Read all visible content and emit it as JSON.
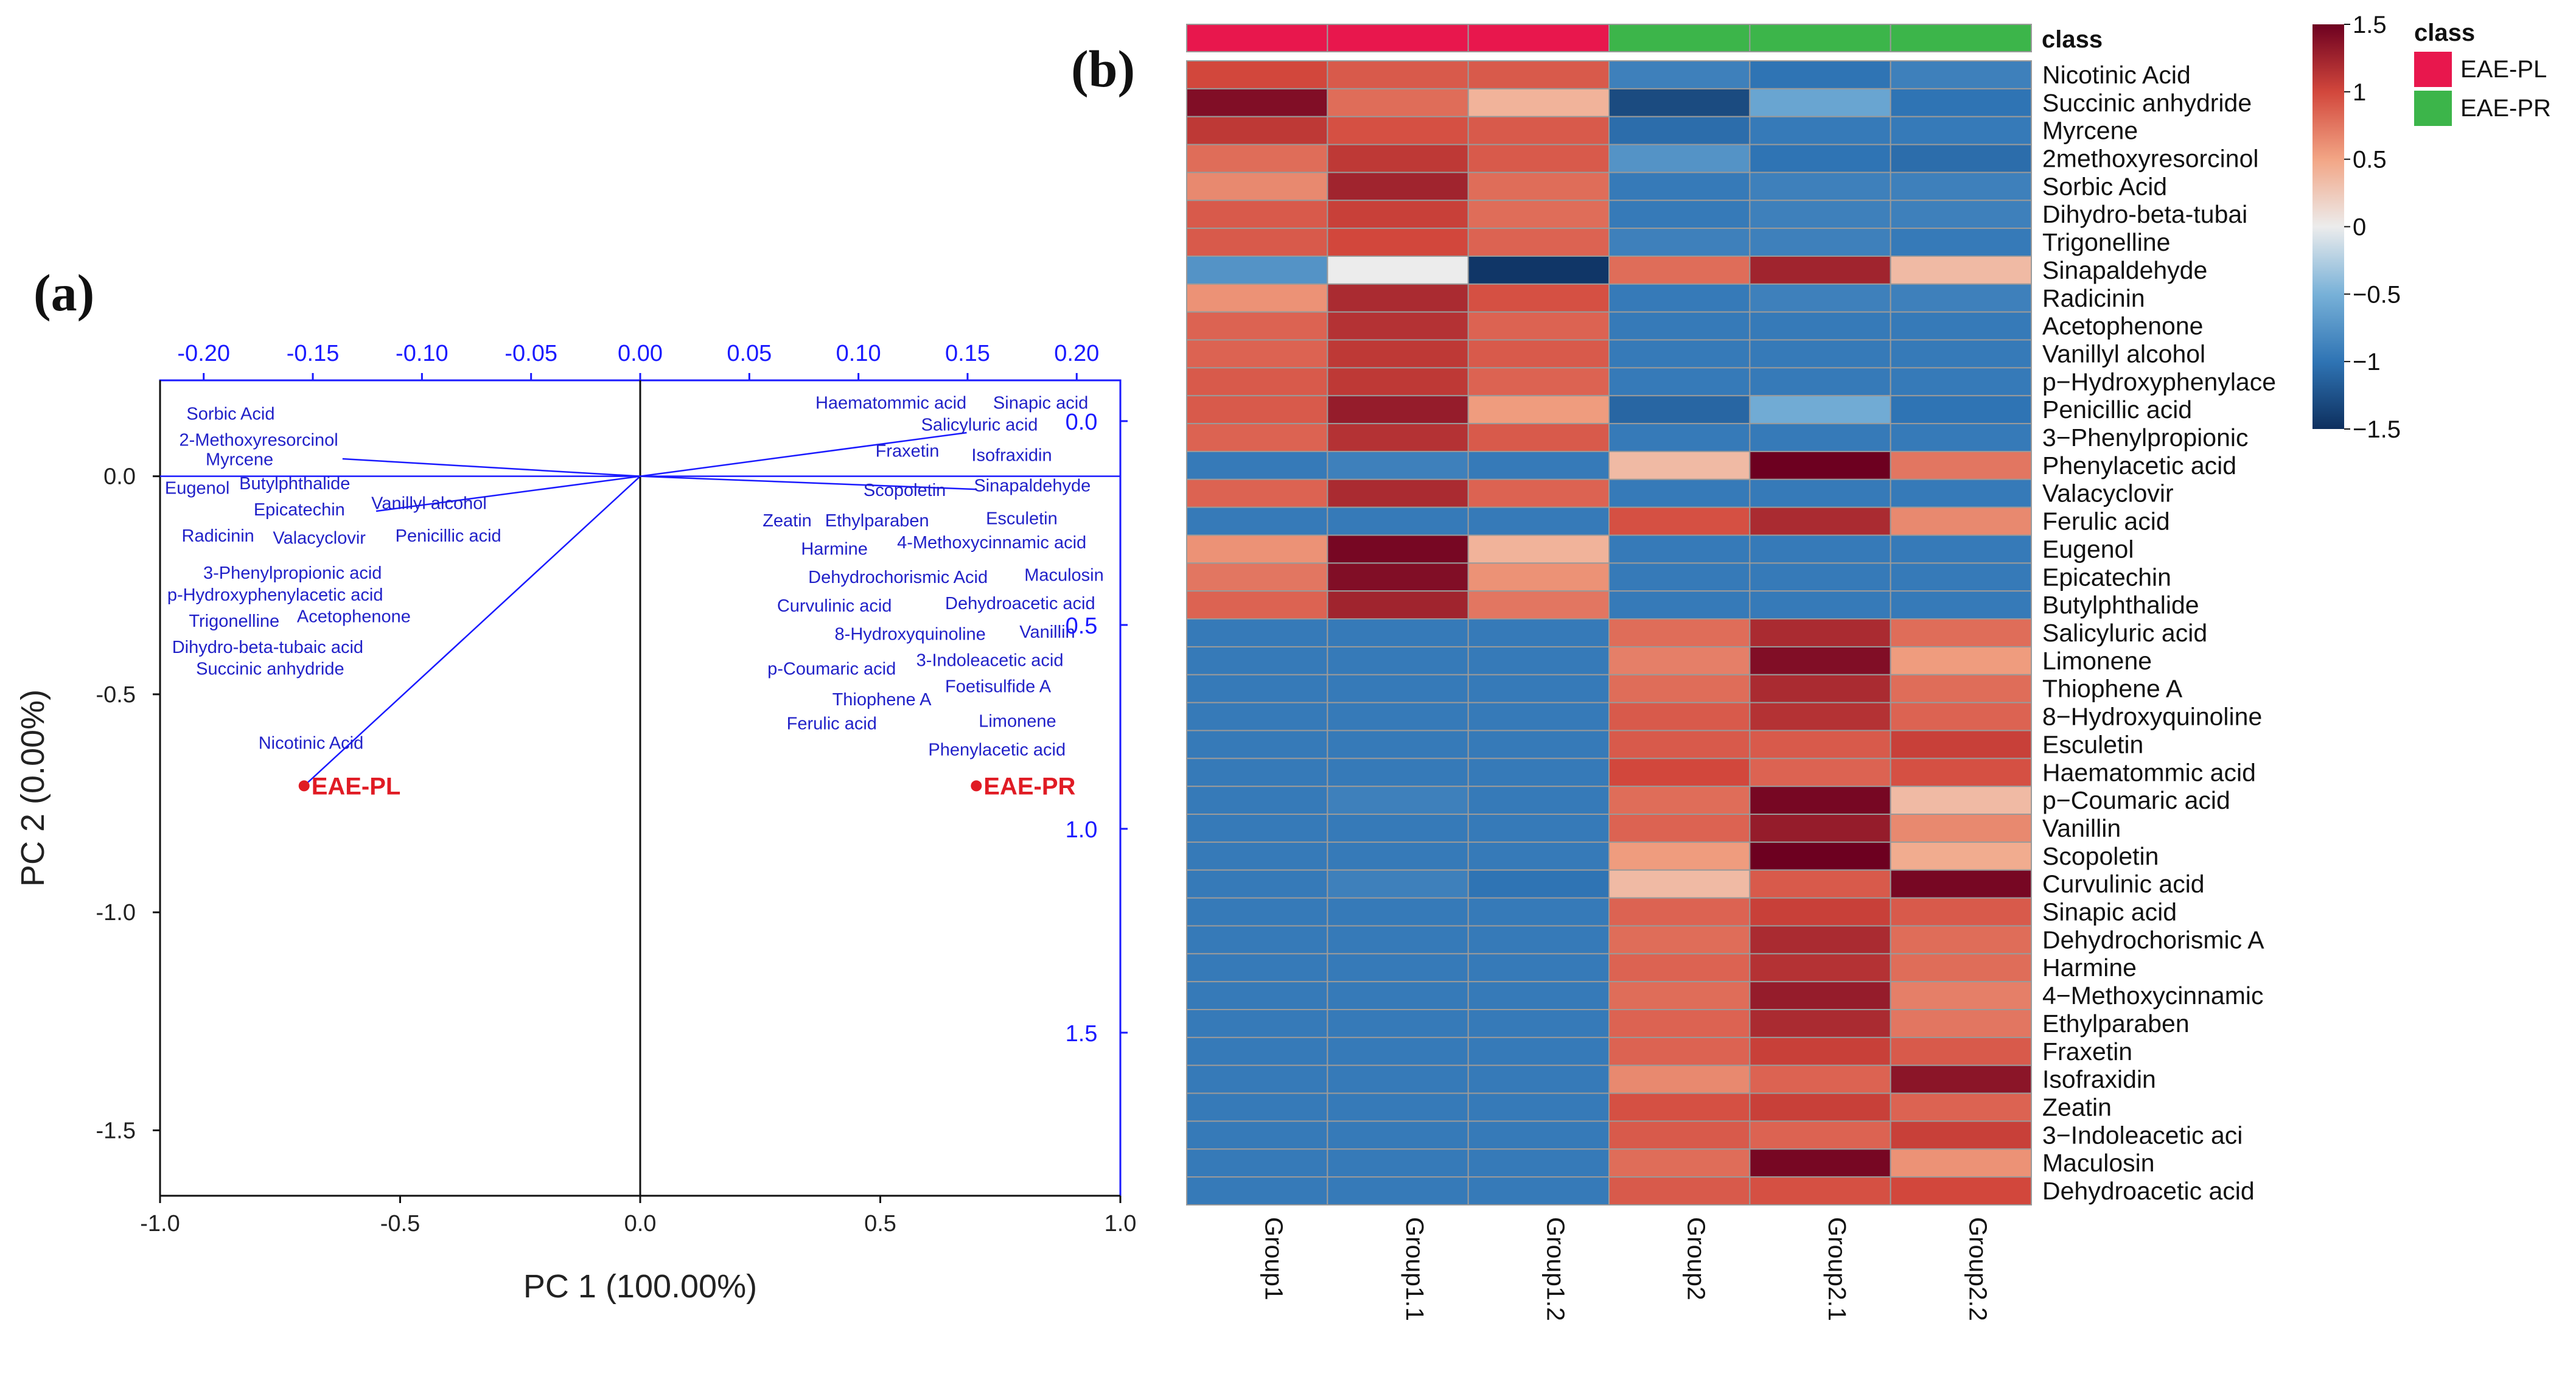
{
  "panel_a_label": "(a)",
  "panel_b_label": "(b)",
  "chart_data": [
    {
      "type": "scatter",
      "subtype": "biplot",
      "xlabel": "PC 1 (100.00%)",
      "ylabel": "PC 2 (0.00%)",
      "xlim": [
        -1.0,
        1.0
      ],
      "ylim": [
        -1.65,
        0.22
      ],
      "x_ticks": [
        -1.0,
        -0.5,
        0.0,
        0.5,
        1.0
      ],
      "x_tick_labels": [
        "-1.0",
        "-0.5",
        "0.0",
        "0.5",
        "1.0"
      ],
      "y_ticks": [
        0.0,
        -0.5,
        -1.0,
        -1.5
      ],
      "y_tick_labels": [
        "0.0",
        "-0.5",
        "-1.0",
        "-1.5"
      ],
      "top_axis": {
        "lim": [
          -0.22,
          0.22
        ],
        "ticks": [
          -0.2,
          -0.15,
          -0.1,
          -0.05,
          0.0,
          0.05,
          0.1,
          0.15,
          0.2
        ],
        "tick_labels": [
          "-0.20",
          "-0.15",
          "-0.10",
          "-0.05",
          "0.00",
          "0.05",
          "0.10",
          "0.15",
          "0.20"
        ]
      },
      "right_axis": {
        "lim": [
          -0.1,
          1.9
        ],
        "ticks": [
          0.0,
          0.5,
          1.0,
          1.5
        ],
        "tick_labels": [
          "0.0",
          "0.5",
          "1.0",
          "1.5"
        ]
      },
      "scores": [
        {
          "label": "EAE-PL",
          "x": -0.7,
          "y": -0.71,
          "color": "#e01b24"
        },
        {
          "label": "EAE-PR",
          "x": 0.7,
          "y": -0.71,
          "color": "#e01b24"
        }
      ],
      "loading_vectors": [
        {
          "x": -0.7,
          "y": -0.71
        },
        {
          "x": -0.62,
          "y": 0.04
        },
        {
          "x": -0.55,
          "y": -0.08
        },
        {
          "x": 0.68,
          "y": 0.1
        },
        {
          "x": 0.7,
          "y": -0.03
        }
      ],
      "variable_labels": [
        {
          "label": "Sorbic Acid",
          "x": -0.945,
          "y": 0.13
        },
        {
          "label": "2-Methoxyresorcinol",
          "x": -0.96,
          "y": 0.07
        },
        {
          "label": "Myrcene",
          "x": -0.905,
          "y": 0.025
        },
        {
          "label": "Eugenol",
          "x": -0.99,
          "y": -0.04
        },
        {
          "label": "Butylphthalide",
          "x": -0.835,
          "y": -0.03
        },
        {
          "label": "Epicatechin",
          "x": -0.805,
          "y": -0.09
        },
        {
          "label": "Vanillyl alcohol",
          "x": -0.56,
          "y": -0.075
        },
        {
          "label": "Radicinin",
          "x": -0.955,
          "y": -0.15
        },
        {
          "label": "Valacyclovir",
          "x": -0.765,
          "y": -0.155
        },
        {
          "label": "Penicillic acid",
          "x": -0.51,
          "y": -0.15
        },
        {
          "label": "3-Phenylpropionic acid",
          "x": -0.91,
          "y": -0.235
        },
        {
          "label": "p-Hydroxyphenylacetic acid",
          "x": -0.985,
          "y": -0.285
        },
        {
          "label": "Trigonelline",
          "x": -0.94,
          "y": -0.345
        },
        {
          "label": "Acetophenone",
          "x": -0.715,
          "y": -0.335
        },
        {
          "label": "Dihydro-beta-tubaic acid",
          "x": -0.975,
          "y": -0.405
        },
        {
          "label": "Succinic anhydride",
          "x": -0.925,
          "y": -0.455
        },
        {
          "label": "Nicotinic Acid",
          "x": -0.795,
          "y": -0.625
        },
        {
          "label": "Haematommic acid",
          "x": 0.365,
          "y": 0.155
        },
        {
          "label": "Sinapic acid",
          "x": 0.735,
          "y": 0.155
        },
        {
          "label": "Salicyluric acid",
          "x": 0.585,
          "y": 0.105
        },
        {
          "label": "Fraxetin",
          "x": 0.49,
          "y": 0.045
        },
        {
          "label": "Isofraxidin",
          "x": 0.69,
          "y": 0.035
        },
        {
          "label": "Scopoletin",
          "x": 0.465,
          "y": -0.045
        },
        {
          "label": "Sinapaldehyde",
          "x": 0.695,
          "y": -0.035
        },
        {
          "label": "Zeatin",
          "x": 0.255,
          "y": -0.115
        },
        {
          "label": "Ethylparaben",
          "x": 0.385,
          "y": -0.115
        },
        {
          "label": "Esculetin",
          "x": 0.72,
          "y": -0.11
        },
        {
          "label": "Harmine",
          "x": 0.335,
          "y": -0.18
        },
        {
          "label": "4-Methoxycinnamic acid",
          "x": 0.535,
          "y": -0.165
        },
        {
          "label": "Dehydrochorismic Acid",
          "x": 0.35,
          "y": -0.245
        },
        {
          "label": "Maculosin",
          "x": 0.8,
          "y": -0.24
        },
        {
          "label": "Curvulinic acid",
          "x": 0.285,
          "y": -0.31
        },
        {
          "label": "Dehydroacetic acid",
          "x": 0.635,
          "y": -0.305
        },
        {
          "label": "8-Hydroxyquinoline",
          "x": 0.405,
          "y": -0.375
        },
        {
          "label": "Vanillin",
          "x": 0.79,
          "y": -0.37
        },
        {
          "label": "3-Indoleacetic acid",
          "x": 0.575,
          "y": -0.435
        },
        {
          "label": "p-Coumaric acid",
          "x": 0.265,
          "y": -0.455
        },
        {
          "label": "Foetisulfide A",
          "x": 0.635,
          "y": -0.495
        },
        {
          "label": "Thiophene A",
          "x": 0.4,
          "y": -0.525
        },
        {
          "label": "Ferulic acid",
          "x": 0.305,
          "y": -0.58
        },
        {
          "label": "Limonene",
          "x": 0.705,
          "y": -0.575
        },
        {
          "label": "Phenylacetic acid",
          "x": 0.6,
          "y": -0.64
        }
      ]
    },
    {
      "type": "heatmap",
      "columns": [
        "Group1",
        "Group1.1",
        "Group1.2",
        "Group2",
        "Group2.1",
        "Group2.2"
      ],
      "class_row_label": "class",
      "class_assignment": [
        "EAE-PL",
        "EAE-PL",
        "EAE-PL",
        "EAE-PR",
        "EAE-PR",
        "EAE-PR"
      ],
      "class_legend": {
        "title": "class",
        "items": [
          {
            "label": "EAE-PL",
            "color": "#e8174d"
          },
          {
            "label": "EAE-PR",
            "color": "#3cb54a"
          }
        ]
      },
      "color_scale": {
        "min": -1.5,
        "max": 1.5,
        "ticks": [
          1.5,
          1,
          0.5,
          0,
          -0.5,
          -1,
          -1.5
        ],
        "tick_labels": [
          "1.5",
          "1",
          "0.5",
          "0",
          "−0.5",
          "−1",
          "−1.5"
        ],
        "stops": [
          {
            "v": -1.5,
            "color": "#0d2f5e"
          },
          {
            "v": -1.0,
            "color": "#2f74b4"
          },
          {
            "v": -0.5,
            "color": "#78b1d8"
          },
          {
            "v": 0.0,
            "color": "#ececec"
          },
          {
            "v": 0.5,
            "color": "#f2a585"
          },
          {
            "v": 1.0,
            "color": "#d2473c"
          },
          {
            "v": 1.5,
            "color": "#6d0020"
          }
        ]
      },
      "rows": [
        {
          "label": "Nicotinic Acid",
          "values": [
            1.0,
            0.9,
            0.9,
            -0.9,
            -1.0,
            -0.9
          ]
        },
        {
          "label": "Succinic anhydride",
          "values": [
            1.4,
            0.8,
            0.4,
            -1.3,
            -0.6,
            -1.0
          ]
        },
        {
          "label": "Myrcene",
          "values": [
            1.1,
            0.95,
            0.9,
            -1.05,
            -0.95,
            -0.95
          ]
        },
        {
          "label": "2methoxyresorcinol",
          "values": [
            0.8,
            1.1,
            0.9,
            -0.75,
            -1.0,
            -1.05
          ]
        },
        {
          "label": "Sorbic Acid",
          "values": [
            0.65,
            1.25,
            0.8,
            -0.95,
            -0.9,
            -0.9
          ]
        },
        {
          "label": "Dihydro-beta-tubai",
          "values": [
            0.9,
            1.05,
            0.8,
            -0.95,
            -0.9,
            -0.9
          ]
        },
        {
          "label": "Trigonelline",
          "values": [
            0.9,
            1.0,
            0.85,
            -0.9,
            -0.9,
            -0.95
          ]
        },
        {
          "label": "Sinapaldehyde",
          "values": [
            -0.75,
            0.0,
            -1.45,
            0.8,
            1.25,
            0.35
          ]
        },
        {
          "label": "Radicinin",
          "values": [
            0.6,
            1.2,
            0.95,
            -0.95,
            -0.9,
            -0.9
          ]
        },
        {
          "label": "Acetophenone",
          "values": [
            0.85,
            1.15,
            0.85,
            -0.95,
            -0.95,
            -0.95
          ]
        },
        {
          "label": "Vanillyl alcohol",
          "values": [
            0.85,
            1.1,
            0.9,
            -0.95,
            -0.95,
            -0.95
          ]
        },
        {
          "label": "p−Hydroxyphenylace",
          "values": [
            0.9,
            1.1,
            0.85,
            -0.95,
            -0.95,
            -0.95
          ]
        },
        {
          "label": "Penicillic acid",
          "values": [
            0.9,
            1.3,
            0.55,
            -1.1,
            -0.55,
            -1.0
          ]
        },
        {
          "label": "3−Phenylpropionic",
          "values": [
            0.85,
            1.15,
            0.9,
            -0.95,
            -0.95,
            -0.95
          ]
        },
        {
          "label": "Phenylacetic acid",
          "values": [
            -0.95,
            -0.9,
            -0.95,
            0.35,
            1.5,
            0.75
          ]
        },
        {
          "label": "Valacyclovir",
          "values": [
            0.85,
            1.2,
            0.85,
            -0.95,
            -0.95,
            -0.95
          ]
        },
        {
          "label": "Ferulic acid",
          "values": [
            -0.95,
            -0.95,
            -0.95,
            0.95,
            1.2,
            0.65
          ]
        },
        {
          "label": "Eugenol",
          "values": [
            0.6,
            1.45,
            0.4,
            -0.95,
            -0.95,
            -0.95
          ]
        },
        {
          "label": "Epicatechin",
          "values": [
            0.75,
            1.4,
            0.6,
            -0.95,
            -0.95,
            -0.95
          ]
        },
        {
          "label": "Butylphthalide",
          "values": [
            0.85,
            1.25,
            0.75,
            -0.95,
            -0.95,
            -0.95
          ]
        },
        {
          "label": "Salicyluric acid",
          "values": [
            -0.95,
            -0.95,
            -0.95,
            0.8,
            1.2,
            0.8
          ]
        },
        {
          "label": "Limonene",
          "values": [
            -0.95,
            -0.95,
            -0.95,
            0.7,
            1.4,
            0.55
          ]
        },
        {
          "label": "Thiophene A",
          "values": [
            -0.95,
            -0.95,
            -0.95,
            0.8,
            1.2,
            0.8
          ]
        },
        {
          "label": "8−Hydroxyquinoline",
          "values": [
            -0.95,
            -0.95,
            -0.95,
            0.9,
            1.15,
            0.85
          ]
        },
        {
          "label": "Esculetin",
          "values": [
            -0.95,
            -0.95,
            -0.95,
            0.9,
            0.9,
            1.05
          ]
        },
        {
          "label": "Haematommic acid",
          "values": [
            -0.95,
            -0.95,
            -0.95,
            1.0,
            0.85,
            0.95
          ]
        },
        {
          "label": "p−Coumaric acid",
          "values": [
            -0.95,
            -0.9,
            -0.95,
            0.8,
            1.45,
            0.35
          ]
        },
        {
          "label": "Vanillin",
          "values": [
            -0.95,
            -0.95,
            -0.95,
            0.85,
            1.3,
            0.65
          ]
        },
        {
          "label": "Scopoletin",
          "values": [
            -0.95,
            -0.95,
            -0.95,
            0.55,
            1.5,
            0.45
          ]
        },
        {
          "label": "Curvulinic acid",
          "values": [
            -0.95,
            -0.9,
            -1.0,
            0.35,
            0.9,
            1.45
          ]
        },
        {
          "label": "Sinapic acid",
          "values": [
            -0.95,
            -0.95,
            -0.95,
            0.85,
            1.05,
            0.9
          ]
        },
        {
          "label": "Dehydrochorismic A",
          "values": [
            -0.95,
            -0.95,
            -0.95,
            0.8,
            1.2,
            0.8
          ]
        },
        {
          "label": "Harmine",
          "values": [
            -0.95,
            -0.95,
            -0.95,
            0.85,
            1.15,
            0.8
          ]
        },
        {
          "label": "4−Methoxycinnamic",
          "values": [
            -0.95,
            -0.95,
            -0.95,
            0.8,
            1.3,
            0.7
          ]
        },
        {
          "label": "Ethylparaben",
          "values": [
            -0.95,
            -0.95,
            -0.95,
            0.85,
            1.2,
            0.75
          ]
        },
        {
          "label": "Fraxetin",
          "values": [
            -0.95,
            -0.95,
            -0.95,
            0.85,
            1.05,
            0.9
          ]
        },
        {
          "label": "Isofraxidin",
          "values": [
            -0.95,
            -0.95,
            -0.95,
            0.65,
            0.85,
            1.35
          ]
        },
        {
          "label": "Zeatin",
          "values": [
            -0.95,
            -0.95,
            -0.95,
            0.95,
            1.05,
            0.85
          ]
        },
        {
          "label": "3−Indoleacetic aci",
          "values": [
            -0.95,
            -0.95,
            -0.95,
            0.9,
            0.85,
            1.05
          ]
        },
        {
          "label": "Maculosin",
          "values": [
            -0.95,
            -0.95,
            -0.95,
            0.8,
            1.45,
            0.6
          ]
        },
        {
          "label": "Dehydroacetic acid",
          "values": [
            -0.95,
            -0.95,
            -0.95,
            0.9,
            0.95,
            1.0
          ]
        }
      ]
    }
  ]
}
